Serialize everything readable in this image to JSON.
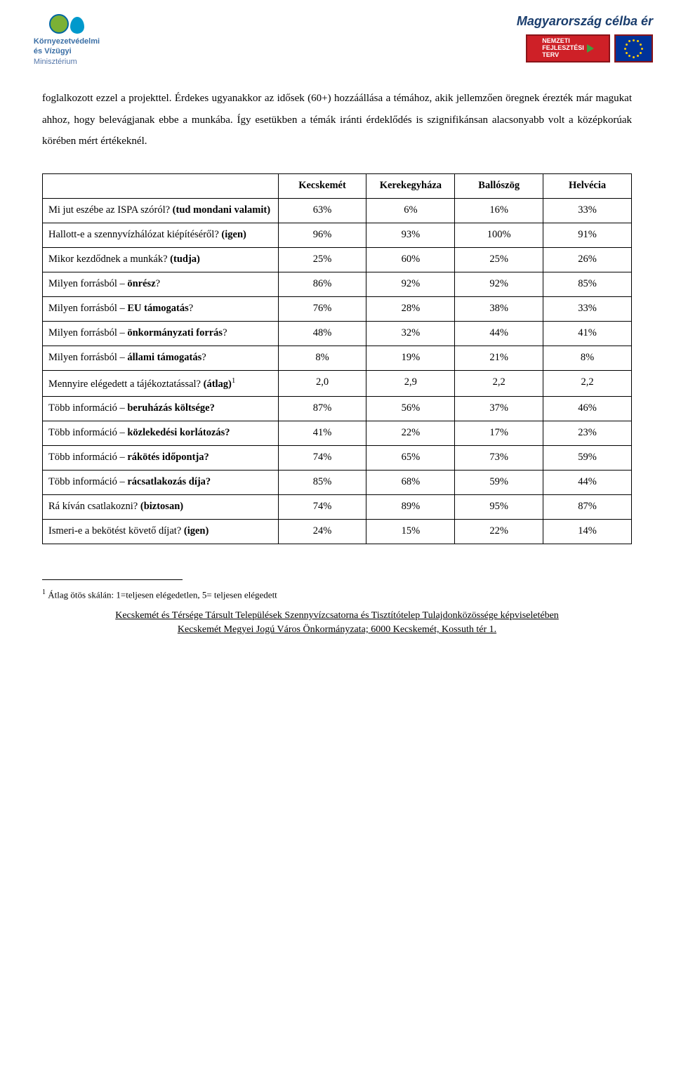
{
  "header": {
    "left_logo": {
      "line1": "Környezetvédelmi",
      "line2": "és Vízügyi",
      "line3": "Minisztérium"
    },
    "slogan": "Magyarország célba ér",
    "badge_left": {
      "line1": "NEMZETI",
      "line2": "FEJLESZTÉSI",
      "line3": "TERV"
    }
  },
  "body": {
    "paragraph": "foglalkozott ezzel a projekttel. Érdekes ugyanakkor az idősek (60+) hozzáállása a témához, akik jellemzően öregnek érezték már magukat ahhoz, hogy belevágjanak ebbe a munkába. Így esetükben a témák iránti érdeklődés is szignifikánsan alacsonyabb volt a középkorúak körében mért értékeknél."
  },
  "table": {
    "columns": [
      "Kecskemét",
      "Kerekegyháza",
      "Ballószög",
      "Helvécia"
    ],
    "rows": [
      {
        "label_html": "Mi jut eszébe az ISPA szóról? <b>(tud mondani valamit)</b>",
        "values": [
          "63%",
          "6%",
          "16%",
          "33%"
        ]
      },
      {
        "label_html": "Hallott-e a szennyvízhálózat kiépítéséről? <b>(igen)</b>",
        "values": [
          "96%",
          "93%",
          "100%",
          "91%"
        ]
      },
      {
        "label_html": "Mikor kezdődnek a munkák? <b>(tudja)</b>",
        "values": [
          "25%",
          "60%",
          "25%",
          "26%"
        ]
      },
      {
        "label_html": "Milyen forrásból – <b>önrész</b>?",
        "values": [
          "86%",
          "92%",
          "92%",
          "85%"
        ]
      },
      {
        "label_html": "Milyen forrásból – <b>EU támogatás</b>?",
        "values": [
          "76%",
          "28%",
          "38%",
          "33%"
        ]
      },
      {
        "label_html": "Milyen forrásból – <b>önkormányzati forrás</b>?",
        "values": [
          "48%",
          "32%",
          "44%",
          "41%"
        ]
      },
      {
        "label_html": "Milyen forrásból – <b>állami támogatás</b>?",
        "values": [
          "8%",
          "19%",
          "21%",
          "8%"
        ]
      },
      {
        "label_html": "Mennyire elégedett a tájékoztatással? <b>(átlag)</b><sup class=\"ref\">1</sup>",
        "values": [
          "2,0",
          "2,9",
          "2,2",
          "2,2"
        ]
      },
      {
        "label_html": "Több információ – <b>beruházás költsége?</b>",
        "values": [
          "87%",
          "56%",
          "37%",
          "46%"
        ]
      },
      {
        "label_html": "Több információ – <b>közlekedési korlátozás?</b>",
        "values": [
          "41%",
          "22%",
          "17%",
          "23%"
        ]
      },
      {
        "label_html": "Több információ – <b>rákötés időpontja?</b>",
        "values": [
          "74%",
          "65%",
          "73%",
          "59%"
        ]
      },
      {
        "label_html": "Több információ – <b>rácsatlakozás díja?</b>",
        "values": [
          "85%",
          "68%",
          "59%",
          "44%"
        ]
      },
      {
        "label_html": "Rá kíván csatlakozni? <b>(biztosan)</b>",
        "values": [
          "74%",
          "89%",
          "95%",
          "87%"
        ]
      },
      {
        "label_html": "Ismeri-e a bekötést követő díjat? <b>(igen)</b>",
        "values": [
          "24%",
          "15%",
          "22%",
          "14%"
        ]
      }
    ],
    "border_color": "#000000",
    "cell_font_size": 14.5,
    "label_col_width_pct": 40,
    "value_col_width_pct": 15
  },
  "footnote": {
    "marker": "1",
    "text": " Átlag ötös skálán: 1=teljesen elégedetlen, 5= teljesen elégedett"
  },
  "footer": {
    "line1": "Kecskemét és Térsége Társult Települések Szennyvízcsatorna és Tisztítótelep Tulajdonközössége képviseletében",
    "line2": "Kecskemét Megyei Jogú Város Önkormányzata; 6000 Kecskemét, Kossuth tér 1."
  },
  "colors": {
    "text": "#000000",
    "background": "#ffffff",
    "header_blue": "#1a3d6d",
    "badge_red": "#ce2027",
    "badge_eu_blue": "#003399",
    "eu_star": "#ffcc00",
    "kv_green": "#7bb135",
    "kv_blue": "#0099cc",
    "kv_text": "#3a6ea5"
  }
}
